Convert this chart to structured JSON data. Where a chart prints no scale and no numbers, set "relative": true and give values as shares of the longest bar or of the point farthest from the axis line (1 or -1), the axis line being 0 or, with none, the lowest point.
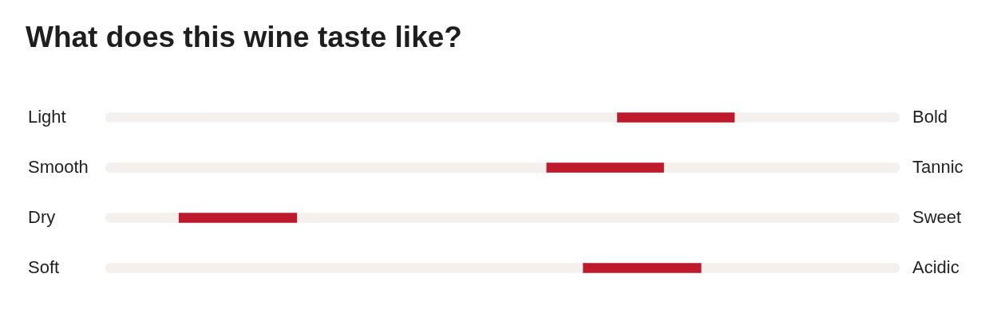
{
  "chart_data": {
    "type": "bar",
    "title": "What does this wine taste like?",
    "orientation": "horizontal",
    "relative": true,
    "stacked": true,
    "categories": [
      "Light",
      "Smooth",
      "Dry",
      "Soft"
    ],
    "y2_categories": [
      "Bold",
      "Tannic",
      "Sweet",
      "Acidic"
    ],
    "series": [
      {
        "color": "#f4f0ed",
        "values": [
          0.644,
          0.555,
          0.092,
          0.601
        ]
      },
      {
        "color": "#be1a2b",
        "values": [
          0.148,
          0.148,
          0.149,
          0.149
        ]
      },
      {
        "color": "#f4f0ed",
        "values": [
          0.208,
          0.297,
          0.759,
          0.25
        ]
      }
    ]
  }
}
